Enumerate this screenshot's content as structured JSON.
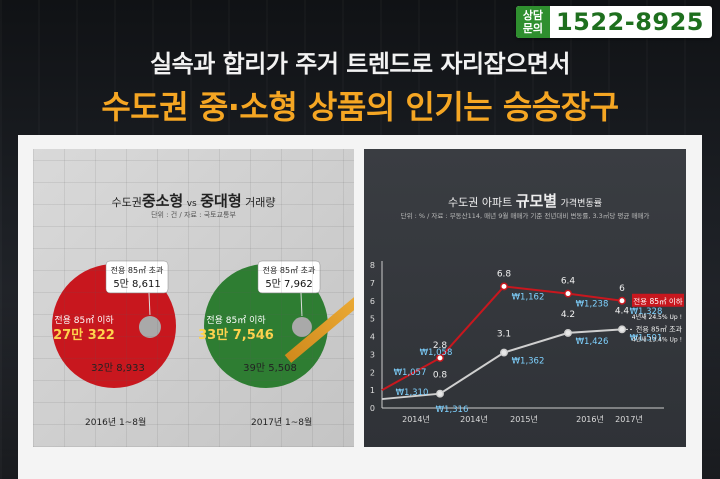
{
  "header": {
    "consult_label_line1": "상담",
    "consult_label_line2": "문의",
    "phone": "1522-8925",
    "headline_1": "실속과 합리가 주거 트렌드로 자리잡으면서",
    "headline_2": "수도권 중·소형 상품의 인기는 승승장구"
  },
  "left_panel": {
    "title_part1": "수도권",
    "title_big1": "중소형",
    "title_vs": "vs",
    "title_big2": "중대형",
    "title_part2": "거래량",
    "subtitle": "단위 : 건 / 자료 : 국토교통부"
  },
  "right_panel": {
    "title_part1": "수도권 아파트",
    "title_big": "규모별",
    "title_part2": "가격변동률",
    "subtitle": "단위 : % / 자료 : 부동산114, 매년 9월 매매가 기준 전년대비 변동률, 3.3㎡당 평균 매매가"
  },
  "colors": {
    "accent": "#f5a623",
    "red": "#c8171e",
    "green": "#2e7d32",
    "phone_green": "#2f8f2f"
  },
  "chart_data": [
    {
      "type": "pie",
      "period": "2016년 1~8월",
      "total": "32만 8,933",
      "slices": [
        {
          "label": "전용 85㎡ 이하",
          "value_text": "27만 322",
          "value": 270322
        },
        {
          "label": "전용 85㎡ 초과",
          "value_text": "5만 8,611",
          "value": 58611
        }
      ]
    },
    {
      "type": "pie",
      "period": "2017년 1~8월",
      "total": "39만 5,508",
      "slices": [
        {
          "label": "전용 85㎡ 이하",
          "value_text": "33만 7,546",
          "value": 337546
        },
        {
          "label": "전용 85㎡ 초과",
          "value_text": "5만 7,962",
          "value": 57962
        }
      ]
    },
    {
      "type": "line",
      "categories": [
        "2014년",
        "2014년",
        "2015년",
        "2016년",
        "2017년"
      ],
      "ylim": [
        0,
        8
      ],
      "yticks": [
        0,
        1,
        2,
        3,
        4,
        5,
        6,
        7,
        8
      ],
      "series": [
        {
          "name": "전용 85㎡ 이하",
          "note": "4년새 24.5% Up !",
          "color": "#c8171e",
          "values": [
            1.0,
            2.8,
            6.8,
            6.4,
            6.0
          ],
          "value_labels": [
            "",
            "2.8",
            "6.8",
            "6.4",
            "6"
          ],
          "price_labels": [
            "₩1,057",
            "₩1,058",
            "₩1,162",
            "₩1,238",
            "₩1,328"
          ]
        },
        {
          "name": "전용 85㎡ 초과",
          "note": "4년새 13.4% Up !",
          "color": "#cfcfcf",
          "values": [
            0.5,
            0.8,
            3.1,
            4.2,
            4.4
          ],
          "value_labels": [
            "",
            "0.8",
            "3.1",
            "4.2",
            "4.4"
          ],
          "price_labels": [
            "₩1,310",
            "₩1,316",
            "₩1,362",
            "₩1,426",
            "₩1,501"
          ]
        }
      ]
    }
  ]
}
